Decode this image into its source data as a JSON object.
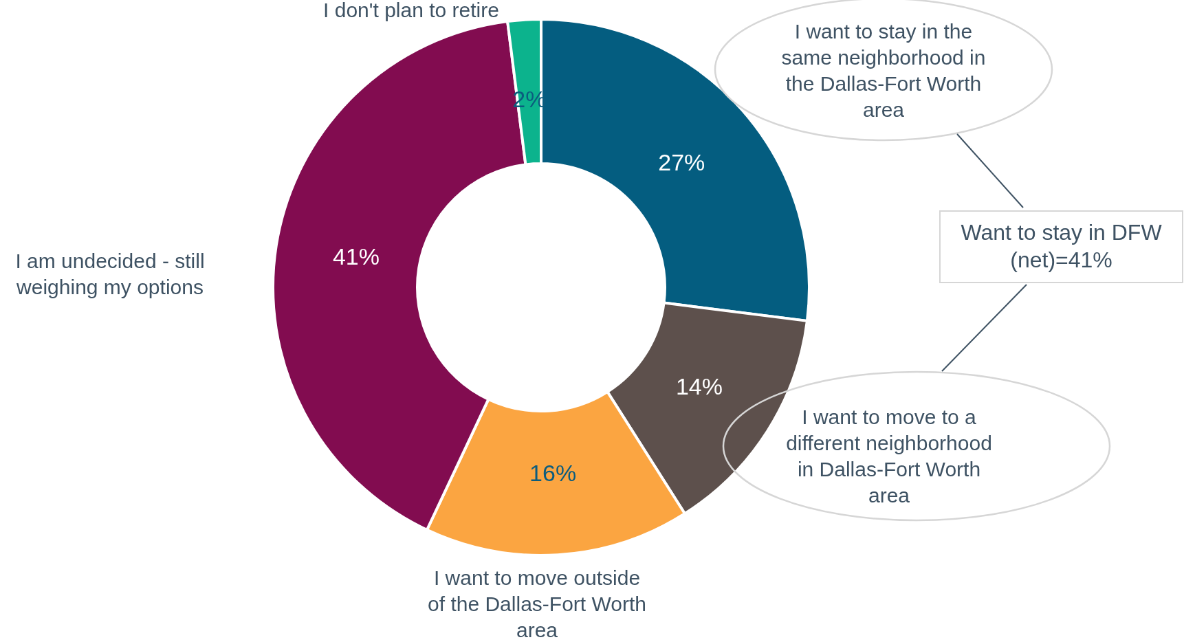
{
  "chart_data": {
    "type": "donut",
    "categories": [
      "I want to stay in the same neighborhood in the Dallas-Fort Worth area",
      "I want to move to a different neighborhood in Dallas-Fort Worth area",
      "I want to move outside of the Dallas-Fort Worth area",
      "I am undecided - still weighing my options",
      "I don't plan to retire"
    ],
    "values": [
      27,
      14,
      16,
      41,
      2
    ],
    "colors": [
      "#045d80",
      "#5d504c",
      "#fba541",
      "#820c50",
      "#0cb38d"
    ],
    "value_labels": [
      "27%",
      "14%",
      "16%",
      "41%",
      "2%"
    ],
    "annotations": [
      "Want to stay in DFW (net)=41%"
    ]
  }
}
